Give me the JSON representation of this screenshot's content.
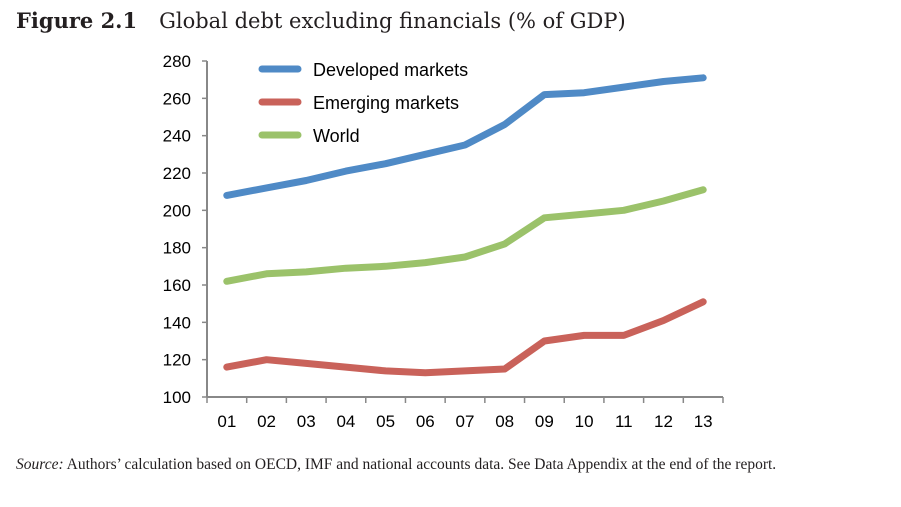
{
  "figure": {
    "number": "Figure 2.1",
    "title": "Global debt excluding financials (% of GDP)"
  },
  "source": {
    "label": "Source:",
    "text": "Authors’ calculation based on OECD, IMF and national accounts data. See Data Appendix at the end of the report."
  },
  "chart_data": {
    "type": "line",
    "title": "Global debt excluding financials (% of GDP)",
    "xlabel": "",
    "ylabel": "",
    "categories": [
      "01",
      "02",
      "03",
      "04",
      "05",
      "06",
      "07",
      "08",
      "09",
      "10",
      "11",
      "12",
      "13"
    ],
    "ylim": [
      100,
      280
    ],
    "yticks": [
      100,
      120,
      140,
      160,
      180,
      200,
      220,
      240,
      260,
      280
    ],
    "grid": false,
    "legend": "top-left",
    "series": [
      {
        "name": "Developed markets",
        "color": "#4f8ac6",
        "values": [
          208,
          212,
          216,
          221,
          225,
          230,
          235,
          246,
          262,
          263,
          266,
          269,
          271
        ]
      },
      {
        "name": "Emerging markets",
        "color": "#c9625a",
        "values": [
          116,
          120,
          118,
          116,
          114,
          113,
          114,
          115,
          130,
          133,
          133,
          141,
          151
        ]
      },
      {
        "name": "World",
        "color": "#9bc26a",
        "values": [
          162,
          166,
          167,
          169,
          170,
          172,
          175,
          182,
          196,
          198,
          200,
          205,
          211
        ]
      }
    ]
  }
}
